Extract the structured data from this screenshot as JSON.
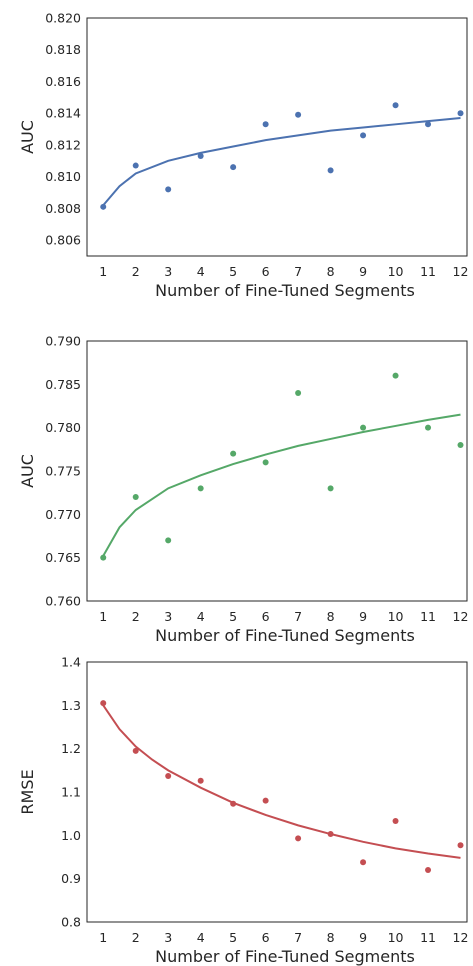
{
  "chart_data": [
    {
      "type": "scatter",
      "xlabel": "Number of Fine-Tuned Segments",
      "ylabel": "AUC",
      "xlim": [
        0.5,
        12.2
      ],
      "ylim": [
        0.805,
        0.82
      ],
      "xticks": [
        1,
        2,
        3,
        4,
        5,
        6,
        7,
        8,
        9,
        10,
        11,
        12
      ],
      "yticks": [
        0.806,
        0.808,
        0.81,
        0.812,
        0.814,
        0.816,
        0.818,
        0.82
      ],
      "ytick_decimals": 3,
      "grid": false,
      "color": "#4c72b0",
      "points": {
        "x": [
          1,
          2,
          3,
          4,
          5,
          6,
          7,
          8,
          9,
          10,
          11,
          12
        ],
        "y": [
          0.8081,
          0.8107,
          0.8092,
          0.8113,
          0.8106,
          0.8133,
          0.8139,
          0.8104,
          0.8126,
          0.8145,
          0.8133,
          0.814
        ]
      },
      "fit": {
        "x": [
          1,
          1.5,
          2,
          3,
          4,
          5,
          6,
          7,
          8,
          9,
          10,
          11,
          12
        ],
        "y": [
          0.8082,
          0.8094,
          0.8102,
          0.811,
          0.8115,
          0.8119,
          0.8123,
          0.8126,
          0.8129,
          0.8131,
          0.8133,
          0.8135,
          0.8137
        ]
      }
    },
    {
      "type": "scatter",
      "xlabel": "Number of Fine-Tuned Segments",
      "ylabel": "AUC",
      "xlim": [
        0.5,
        12.2
      ],
      "ylim": [
        0.76,
        0.79
      ],
      "xticks": [
        1,
        2,
        3,
        4,
        5,
        6,
        7,
        8,
        9,
        10,
        11,
        12
      ],
      "yticks": [
        0.76,
        0.765,
        0.77,
        0.775,
        0.78,
        0.785,
        0.79
      ],
      "ytick_decimals": 3,
      "grid": false,
      "color": "#55a868",
      "points": {
        "x": [
          1,
          2,
          3,
          4,
          5,
          6,
          7,
          8,
          9,
          10,
          11,
          12
        ],
        "y": [
          0.765,
          0.772,
          0.767,
          0.773,
          0.777,
          0.776,
          0.784,
          0.773,
          0.78,
          0.786,
          0.78,
          0.778
        ]
      },
      "fit": {
        "x": [
          1,
          1.5,
          2,
          3,
          4,
          5,
          6,
          7,
          8,
          9,
          10,
          11,
          12
        ],
        "y": [
          0.7652,
          0.7685,
          0.7705,
          0.773,
          0.7745,
          0.7758,
          0.7769,
          0.7779,
          0.7787,
          0.7795,
          0.7802,
          0.7809,
          0.7815
        ]
      }
    },
    {
      "type": "scatter",
      "xlabel": "Number of Fine-Tuned Segments",
      "ylabel": "RMSE",
      "xlim": [
        0.5,
        12.2
      ],
      "ylim": [
        0.8,
        1.4
      ],
      "xticks": [
        1,
        2,
        3,
        4,
        5,
        6,
        7,
        8,
        9,
        10,
        11,
        12
      ],
      "yticks": [
        0.8,
        0.9,
        1.0,
        1.1,
        1.2,
        1.3,
        1.4
      ],
      "ytick_decimals": 1,
      "grid": false,
      "color": "#c44e52",
      "points": {
        "x": [
          1,
          2,
          3,
          4,
          5,
          6,
          7,
          8,
          9,
          10,
          11,
          12
        ],
        "y": [
          1.305,
          1.195,
          1.137,
          1.126,
          1.073,
          1.08,
          0.993,
          1.003,
          0.938,
          1.033,
          0.92,
          0.977
        ]
      },
      "fit": {
        "x": [
          1,
          1.5,
          2,
          2.5,
          3,
          4,
          5,
          6,
          7,
          8,
          9,
          10,
          11,
          12
        ],
        "y": [
          1.3,
          1.245,
          1.205,
          1.175,
          1.15,
          1.11,
          1.075,
          1.047,
          1.023,
          1.003,
          0.985,
          0.97,
          0.958,
          0.948
        ]
      }
    }
  ]
}
